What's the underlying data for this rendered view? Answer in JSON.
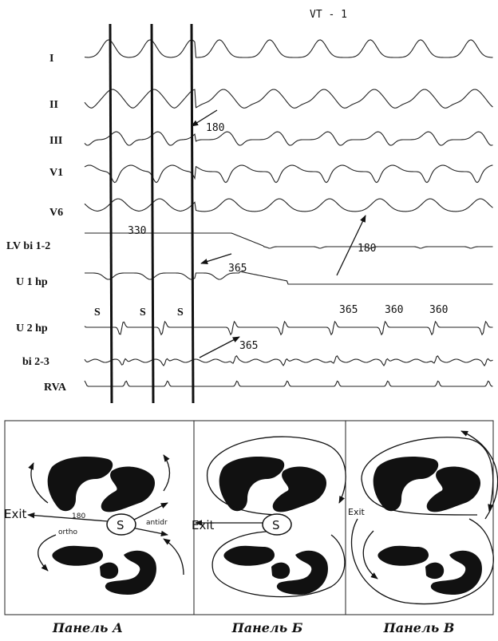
{
  "header": {
    "title": "VT - 1"
  },
  "leads": [
    "I",
    "II",
    "III",
    "V1",
    "V6",
    "LV bi 1-2",
    "U 1 hp",
    "U 2 hp",
    "bi 2-3",
    "RVA"
  ],
  "annotations": [
    "180",
    "330",
    "180",
    "365",
    "365",
    "360",
    "360",
    "365"
  ],
  "stimuli": [
    "S",
    "S",
    "S"
  ],
  "panels": [
    {
      "title": "Панель А",
      "labels": [
        "Exit",
        "180",
        "ortho",
        "S",
        "antidr"
      ]
    },
    {
      "title": "Панель Б",
      "labels": [
        "Exit",
        "S"
      ]
    },
    {
      "title": "Панель В",
      "labels": [
        "Exit"
      ]
    }
  ]
}
